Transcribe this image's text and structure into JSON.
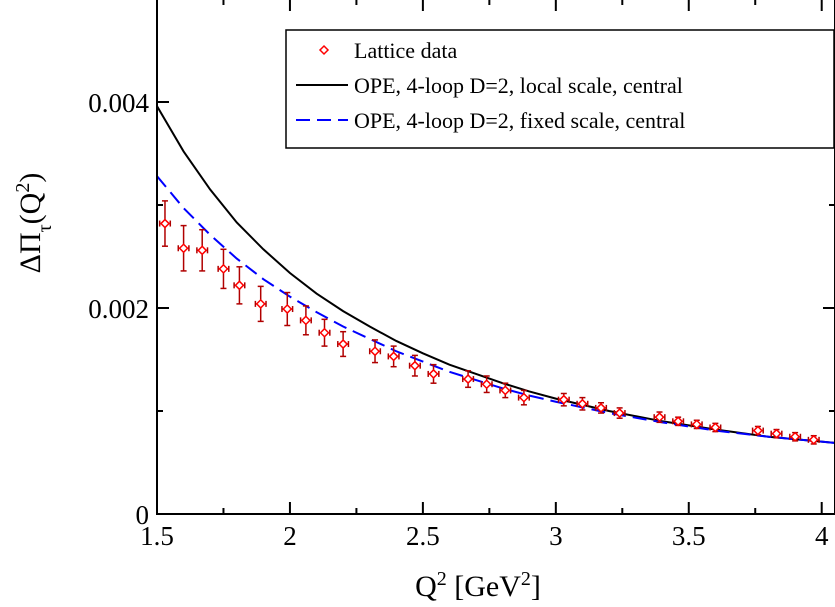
{
  "chart_data": {
    "type": "scatter",
    "xlabel": {
      "base": "Q",
      "sup": "2",
      "unit_open": " [GeV",
      "unit_sup": "2",
      "unit_close": "]"
    },
    "ylabel": {
      "prefix": "ΔΠ",
      "sub": "τ",
      "mid": "(Q",
      "sup": "2",
      "close": ")"
    },
    "xlim": [
      1.5,
      4.05
    ],
    "ylim": [
      0,
      0.005
    ],
    "x_ticks": [
      {
        "value": 1.5,
        "label": "1.5"
      },
      {
        "value": 2.0,
        "label": "2"
      },
      {
        "value": 2.5,
        "label": "2.5"
      },
      {
        "value": 3.0,
        "label": "3"
      },
      {
        "value": 3.5,
        "label": "3.5"
      },
      {
        "value": 4.0,
        "label": "4"
      }
    ],
    "y_ticks": [
      {
        "value": 0,
        "label": "0"
      },
      {
        "value": 0.002,
        "label": "0.002"
      },
      {
        "value": 0.004,
        "label": "0.004"
      }
    ],
    "x_minor_step": 0.25,
    "y_minor_step": 0.001,
    "grid": false,
    "legend_position": "top-right",
    "series": [
      {
        "name": "Lattice data",
        "kind": "points",
        "color": "#ff0000",
        "marker": "diamond",
        "errorbar_color": "#b00000",
        "points": [
          {
            "x": 1.53,
            "y": 0.00282,
            "yerr": 0.00022,
            "xerr": 0.02
          },
          {
            "x": 1.6,
            "y": 0.00258,
            "yerr": 0.00022,
            "xerr": 0.02
          },
          {
            "x": 1.67,
            "y": 0.00256,
            "yerr": 0.0002,
            "xerr": 0.02
          },
          {
            "x": 1.75,
            "y": 0.00238,
            "yerr": 0.00019,
            "xerr": 0.02
          },
          {
            "x": 1.81,
            "y": 0.00222,
            "yerr": 0.00018,
            "xerr": 0.02
          },
          {
            "x": 1.89,
            "y": 0.00204,
            "yerr": 0.00017,
            "xerr": 0.02
          },
          {
            "x": 1.99,
            "y": 0.00199,
            "yerr": 0.00016,
            "xerr": 0.02
          },
          {
            "x": 2.06,
            "y": 0.00188,
            "yerr": 0.00014,
            "xerr": 0.02
          },
          {
            "x": 2.13,
            "y": 0.00176,
            "yerr": 0.00013,
            "xerr": 0.02
          },
          {
            "x": 2.2,
            "y": 0.00165,
            "yerr": 0.00012,
            "xerr": 0.02
          },
          {
            "x": 2.32,
            "y": 0.00158,
            "yerr": 0.00011,
            "xerr": 0.02
          },
          {
            "x": 2.39,
            "y": 0.00153,
            "yerr": 0.0001,
            "xerr": 0.02
          },
          {
            "x": 2.47,
            "y": 0.00144,
            "yerr": 0.0001,
            "xerr": 0.02
          },
          {
            "x": 2.54,
            "y": 0.00136,
            "yerr": 9e-05,
            "xerr": 0.02
          },
          {
            "x": 2.67,
            "y": 0.00131,
            "yerr": 8e-05,
            "xerr": 0.02
          },
          {
            "x": 2.74,
            "y": 0.00126,
            "yerr": 8e-05,
            "xerr": 0.02
          },
          {
            "x": 2.81,
            "y": 0.0012,
            "yerr": 7e-05,
            "xerr": 0.02
          },
          {
            "x": 2.88,
            "y": 0.00113,
            "yerr": 7e-05,
            "xerr": 0.02
          },
          {
            "x": 3.03,
            "y": 0.00111,
            "yerr": 6e-05,
            "xerr": 0.02
          },
          {
            "x": 3.1,
            "y": 0.00107,
            "yerr": 6e-05,
            "xerr": 0.02
          },
          {
            "x": 3.17,
            "y": 0.00103,
            "yerr": 5e-05,
            "xerr": 0.02
          },
          {
            "x": 3.24,
            "y": 0.00098,
            "yerr": 5e-05,
            "xerr": 0.02
          },
          {
            "x": 3.39,
            "y": 0.00094,
            "yerr": 5e-05,
            "xerr": 0.02
          },
          {
            "x": 3.46,
            "y": 0.0009,
            "yerr": 4e-05,
            "xerr": 0.02
          },
          {
            "x": 3.53,
            "y": 0.00087,
            "yerr": 4e-05,
            "xerr": 0.02
          },
          {
            "x": 3.6,
            "y": 0.00084,
            "yerr": 4e-05,
            "xerr": 0.02
          },
          {
            "x": 3.76,
            "y": 0.00081,
            "yerr": 4e-05,
            "xerr": 0.02
          },
          {
            "x": 3.83,
            "y": 0.00078,
            "yerr": 4e-05,
            "xerr": 0.02
          },
          {
            "x": 3.9,
            "y": 0.00075,
            "yerr": 4e-05,
            "xerr": 0.02
          },
          {
            "x": 3.97,
            "y": 0.00072,
            "yerr": 4e-05,
            "xerr": 0.02
          }
        ]
      },
      {
        "name": "OPE, 4-loop D=2, local scale, central",
        "kind": "line",
        "color": "#000000",
        "dash": "solid",
        "points": [
          {
            "x": 1.5,
            "y": 0.00396
          },
          {
            "x": 1.6,
            "y": 0.00352
          },
          {
            "x": 1.7,
            "y": 0.00315
          },
          {
            "x": 1.8,
            "y": 0.00283
          },
          {
            "x": 1.9,
            "y": 0.00257
          },
          {
            "x": 2.0,
            "y": 0.00234
          },
          {
            "x": 2.1,
            "y": 0.00214
          },
          {
            "x": 2.2,
            "y": 0.00197
          },
          {
            "x": 2.3,
            "y": 0.00182
          },
          {
            "x": 2.4,
            "y": 0.00168
          },
          {
            "x": 2.5,
            "y": 0.00156
          },
          {
            "x": 2.6,
            "y": 0.00145
          },
          {
            "x": 2.7,
            "y": 0.00136
          },
          {
            "x": 2.8,
            "y": 0.00127
          },
          {
            "x": 2.9,
            "y": 0.00119
          },
          {
            "x": 3.0,
            "y": 0.00112
          },
          {
            "x": 3.2,
            "y": 0.001
          },
          {
            "x": 3.4,
            "y": 0.0009
          },
          {
            "x": 3.6,
            "y": 0.00082
          },
          {
            "x": 3.8,
            "y": 0.00075
          },
          {
            "x": 4.05,
            "y": 0.00069
          }
        ]
      },
      {
        "name": "OPE, 4-loop D=2, fixed scale, central",
        "kind": "line",
        "color": "#0000ff",
        "dash": "dashed",
        "points": [
          {
            "x": 1.5,
            "y": 0.00328
          },
          {
            "x": 1.6,
            "y": 0.00297
          },
          {
            "x": 1.7,
            "y": 0.00271
          },
          {
            "x": 1.8,
            "y": 0.00248
          },
          {
            "x": 1.9,
            "y": 0.00228
          },
          {
            "x": 2.0,
            "y": 0.00211
          },
          {
            "x": 2.1,
            "y": 0.00196
          },
          {
            "x": 2.2,
            "y": 0.00182
          },
          {
            "x": 2.3,
            "y": 0.0017
          },
          {
            "x": 2.4,
            "y": 0.00158
          },
          {
            "x": 2.5,
            "y": 0.00148
          },
          {
            "x": 2.6,
            "y": 0.00138
          },
          {
            "x": 2.7,
            "y": 0.0013
          },
          {
            "x": 2.8,
            "y": 0.00122
          },
          {
            "x": 2.9,
            "y": 0.00115
          },
          {
            "x": 3.0,
            "y": 0.00109
          },
          {
            "x": 3.2,
            "y": 0.00098
          },
          {
            "x": 3.4,
            "y": 0.00089
          },
          {
            "x": 3.6,
            "y": 0.00081
          },
          {
            "x": 3.8,
            "y": 0.00075
          },
          {
            "x": 4.05,
            "y": 0.00069
          }
        ]
      }
    ]
  }
}
